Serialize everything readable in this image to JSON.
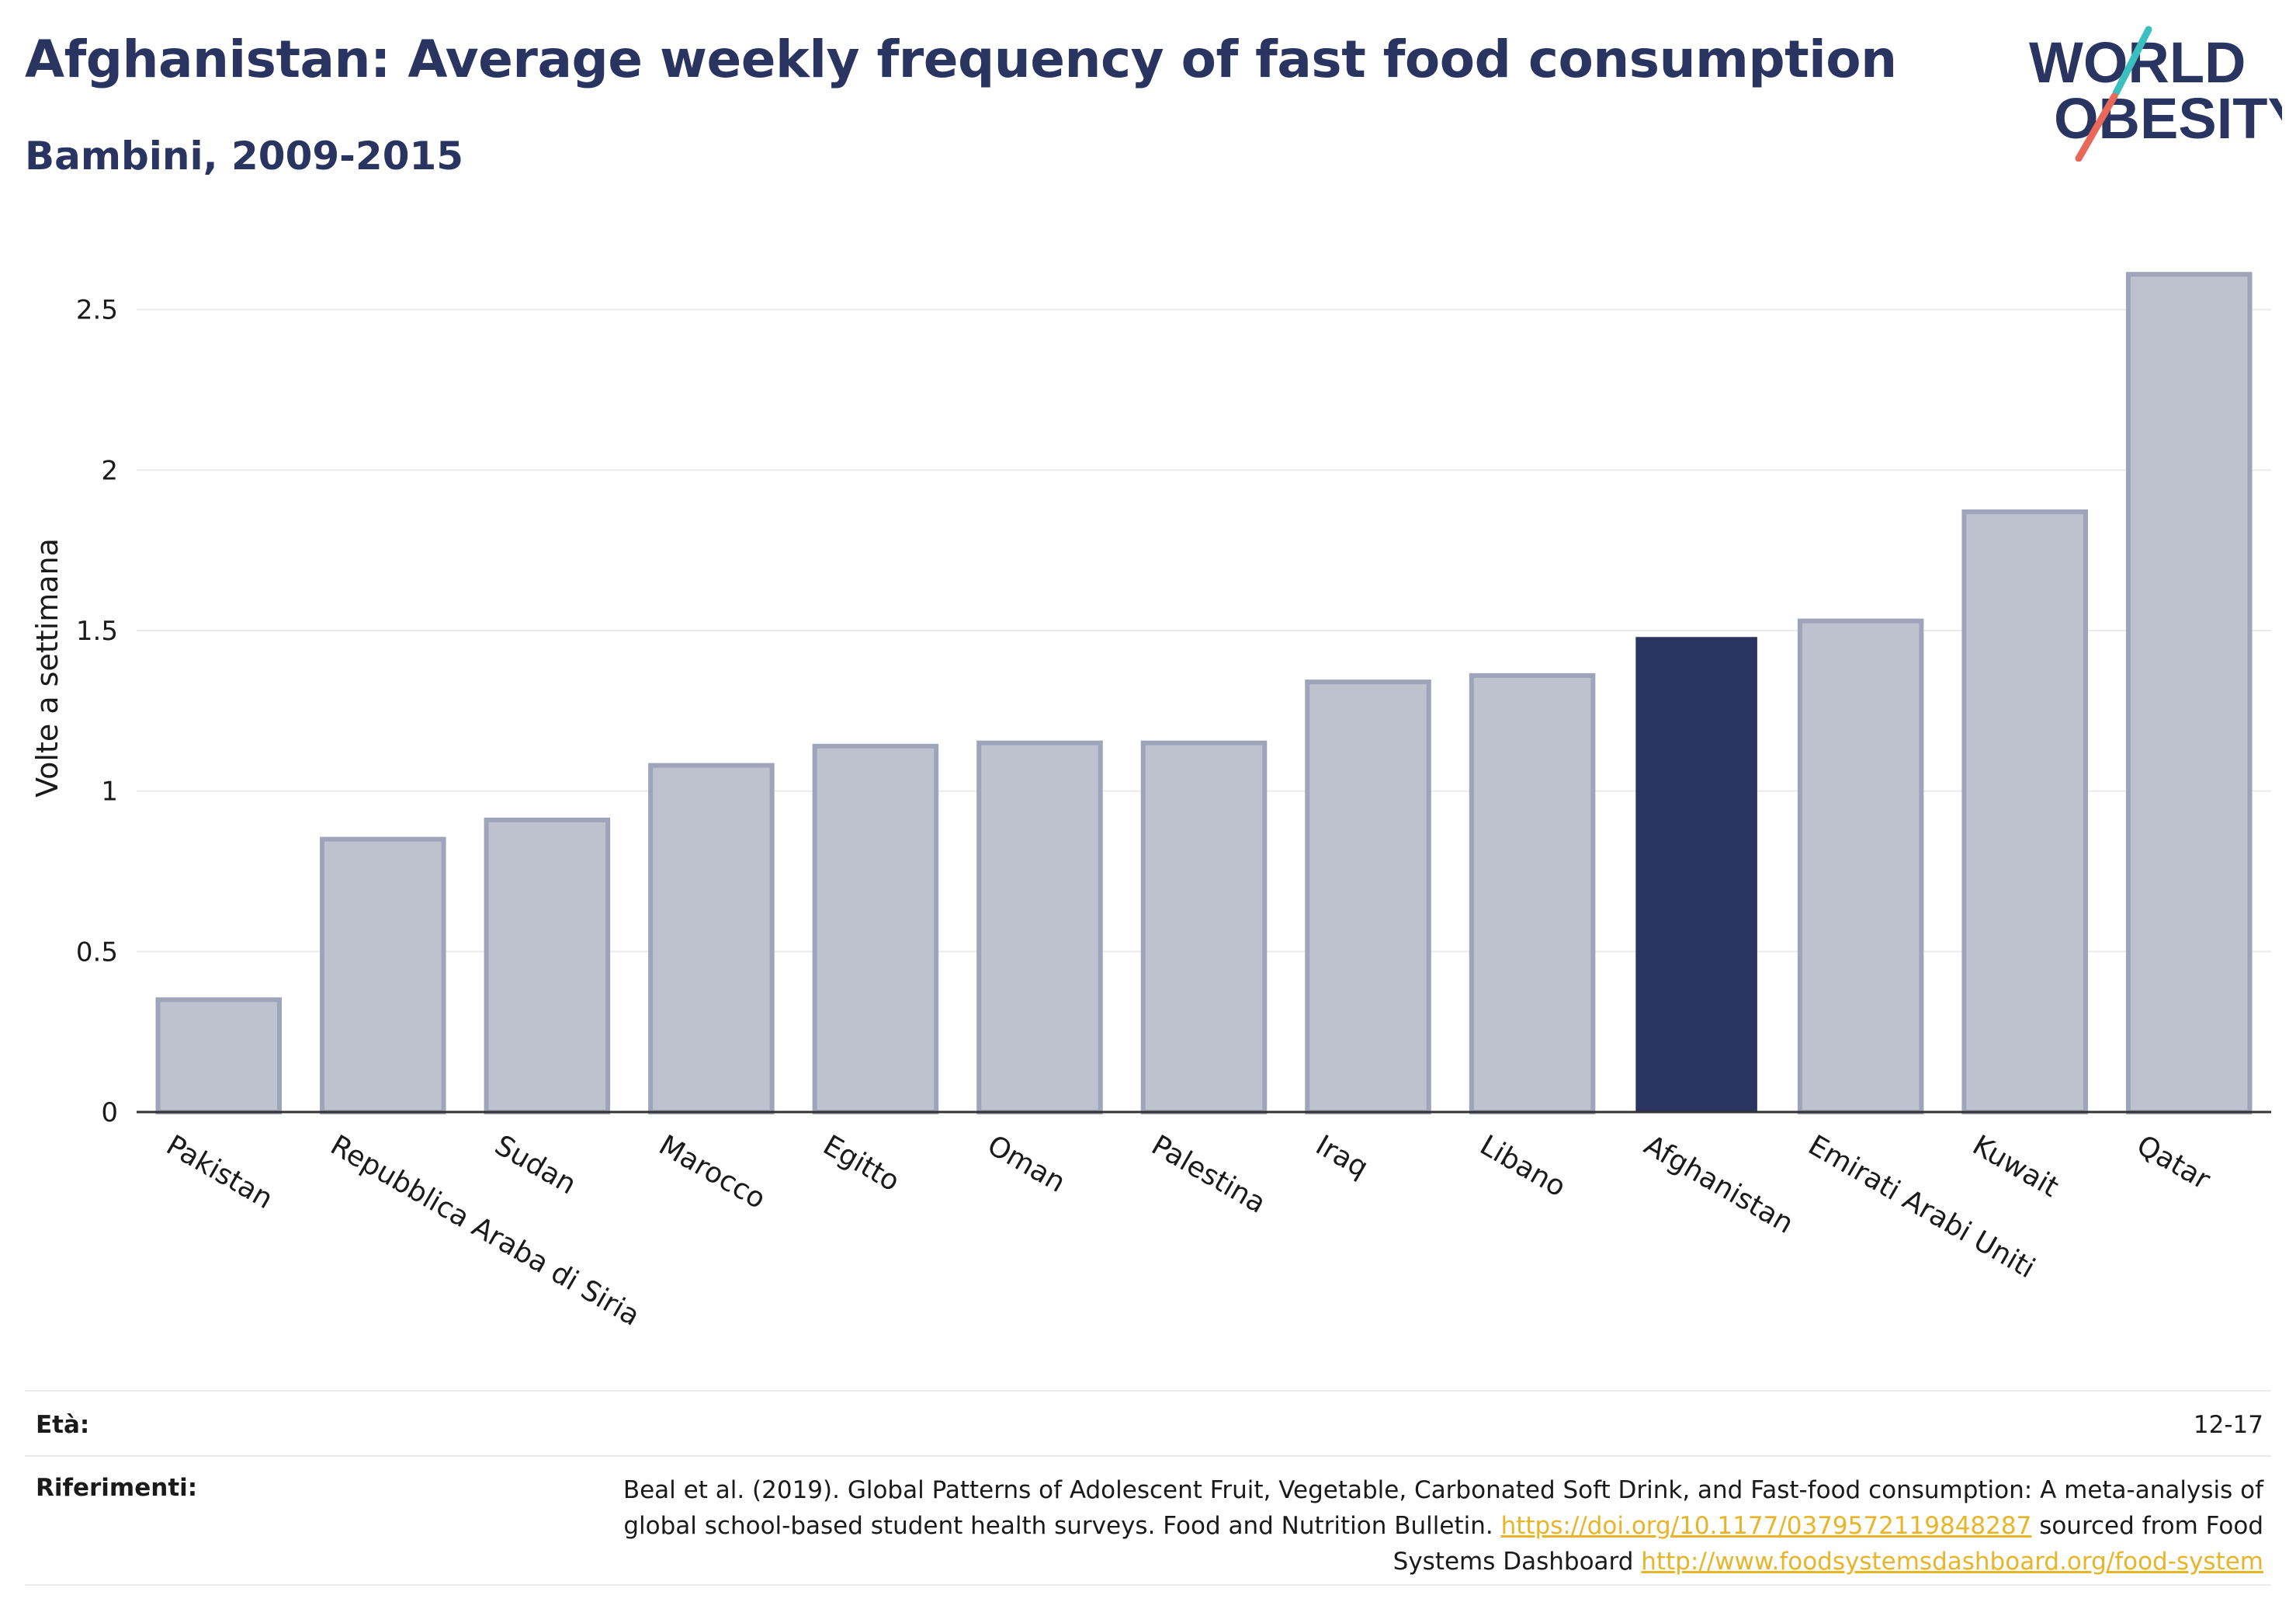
{
  "header": {
    "title": "Afghanistan: Average weekly frequency of fast food consumption",
    "subtitle": "Bambini, 2009-2015"
  },
  "logo": {
    "line1": "WORLD",
    "line2": "OBESITY",
    "colors": {
      "text": "#2a3460",
      "slash_teal": "#3bbfbf",
      "slash_red": "#e8685a"
    }
  },
  "chart_data": {
    "type": "bar",
    "title": "Afghanistan: Average weekly frequency of fast food consumption",
    "subtitle": "Bambini, 2009-2015",
    "xlabel": "",
    "ylabel": "Volte a settimana",
    "ylim": [
      0,
      2.7
    ],
    "yticks": [
      0,
      0.5,
      1,
      1.5,
      2,
      2.5
    ],
    "ytick_labels": [
      "0",
      "0.5",
      "1",
      "1.5",
      "2",
      "2.5"
    ],
    "categories": [
      "Pakistan",
      "Repubblica Araba di Siria",
      "Sudan",
      "Marocco",
      "Egitto",
      "Oman",
      "Palestina",
      "Iraq",
      "Libano",
      "Afghanistan",
      "Emirati Arabi Uniti",
      "Kuwait",
      "Qatar"
    ],
    "values": [
      0.35,
      0.85,
      0.91,
      1.08,
      1.14,
      1.15,
      1.15,
      1.34,
      1.36,
      1.48,
      1.53,
      1.87,
      2.61
    ],
    "highlight": "Afghanistan",
    "grid": true,
    "colors": {
      "bar": "#2a3460",
      "bar_other_fill": "#bec2cf",
      "bar_other_stroke": "#9ea4ba",
      "grid": "#ebebeb",
      "axis": "#333333"
    }
  },
  "footer": {
    "age_label": "Età:",
    "age_value": "12-17",
    "refs_label": "Riferimenti:",
    "refs_text_1": "Beal et al. (2019). Global Patterns of Adolescent Fruit, Vegetable, Carbonated Soft Drink, and Fast-food consumption: A meta-analysis of global school-based student health surveys. Food and Nutrition Bulletin.",
    "refs_link_1": "https://doi.org/10.1177/0379572119848287",
    "refs_text_2": "sourced from Food Systems Dashboard",
    "refs_link_2": "http://www.foodsystemsdashboard.org/food-system"
  }
}
